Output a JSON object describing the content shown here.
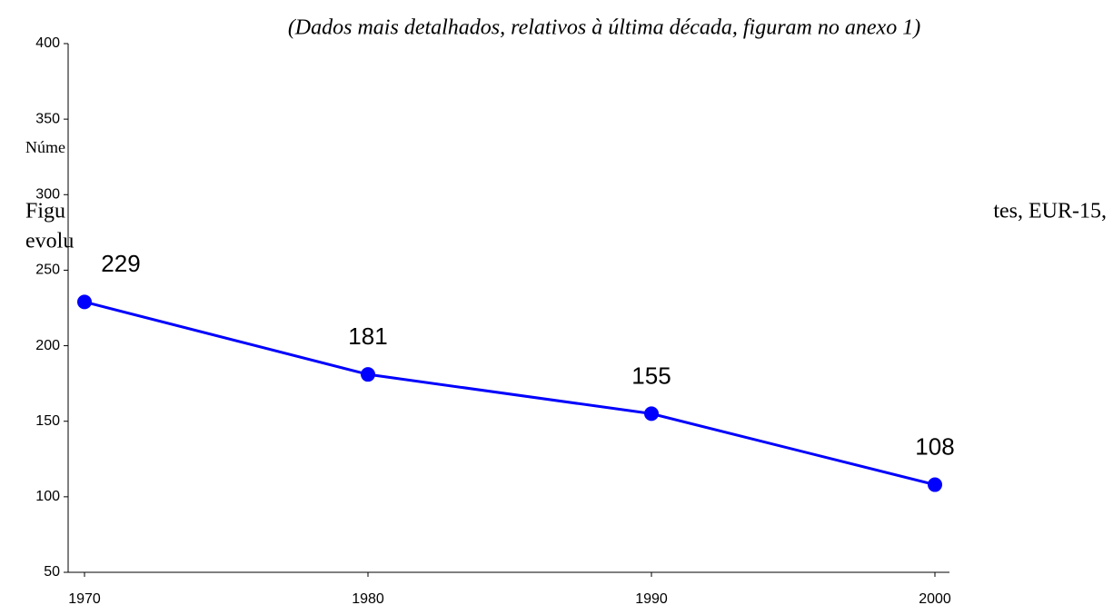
{
  "document": {
    "caption": "(Dados mais detalhados, relativos à última década, figuram no anexo 1)",
    "fragments": [
      "Núme",
      "Figu",
      "tes, EUR-15,",
      "evolu"
    ]
  },
  "chart_data": {
    "type": "line",
    "categories": [
      "1970",
      "1980",
      "1990",
      "2000"
    ],
    "series": [
      {
        "color": "#0000ff",
        "values": [
          229,
          181,
          155,
          108
        ]
      }
    ],
    "ylim": [
      50,
      400
    ],
    "yticks": [
      50,
      100,
      150,
      200,
      250,
      300,
      350,
      400
    ]
  }
}
